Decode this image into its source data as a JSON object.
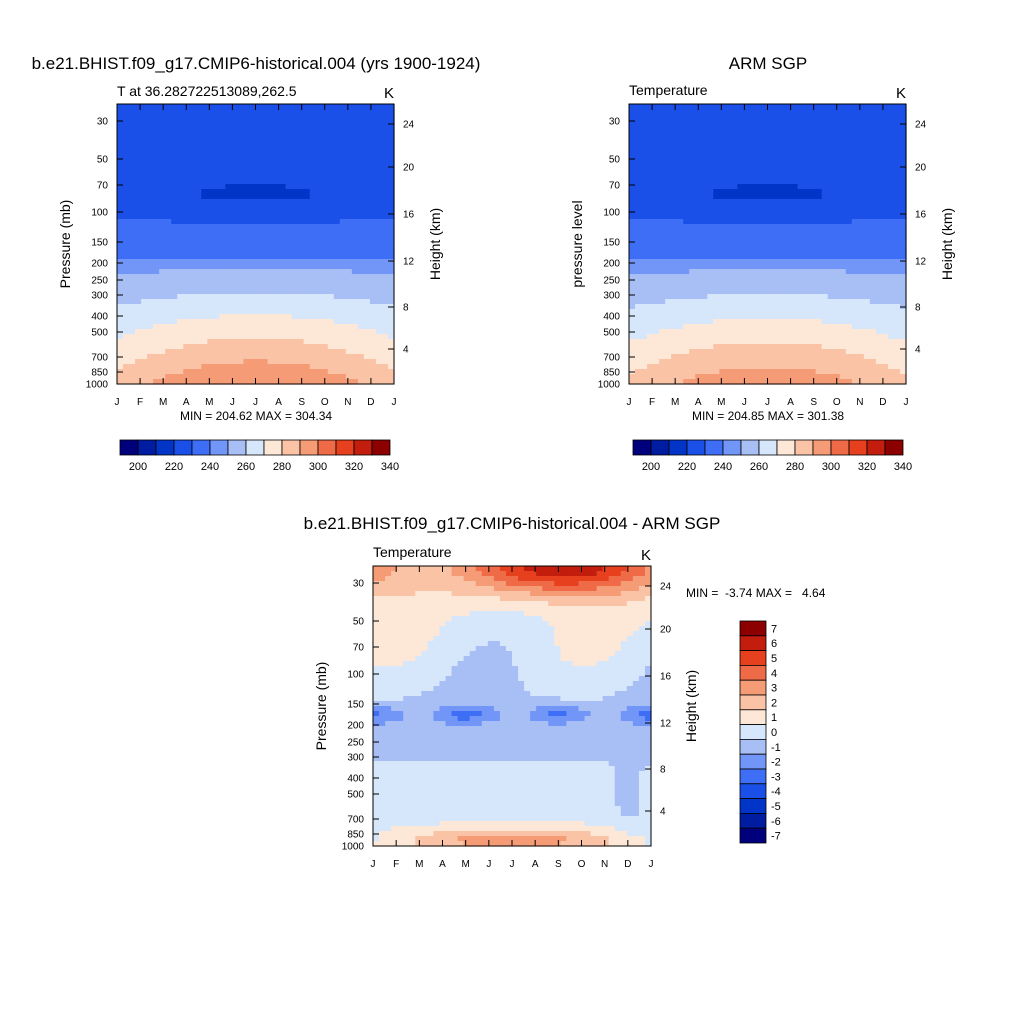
{
  "chart_data": [
    {
      "type": "heatmap",
      "title": "b.e21.BHIST.f09_g17.CMIP6-historical.004 (yrs 1900-1924)",
      "subtitle_left": "T at 36.282722513089,262.5",
      "subtitle_right": "K",
      "ylabel": "Pressure (mb)",
      "y2label": "Height (km)",
      "x_ticks": [
        "J",
        "F",
        "M",
        "A",
        "M",
        "J",
        "J",
        "A",
        "S",
        "O",
        "N",
        "D",
        "J"
      ],
      "y_ticks": [
        "30",
        "50",
        "70",
        "100",
        "150",
        "200",
        "250",
        "300",
        "400",
        "500",
        "700",
        "850",
        "1000"
      ],
      "y2_ticks": [
        "24",
        "20",
        "16",
        "12",
        "8",
        "4"
      ],
      "stats": "MIN = 204.62 MAX = 304.34",
      "colorbar_labels": [
        "200",
        "220",
        "240",
        "260",
        "280",
        "300",
        "320",
        "340"
      ],
      "min": 204.62,
      "max": 304.34
    },
    {
      "type": "heatmap",
      "title": "ARM SGP",
      "subtitle_left": "Temperature",
      "subtitle_right": "K",
      "ylabel": "pressure level",
      "y2label": "Height (km)",
      "x_ticks": [
        "J",
        "F",
        "M",
        "A",
        "M",
        "J",
        "J",
        "A",
        "S",
        "O",
        "N",
        "D",
        "J"
      ],
      "y_ticks": [
        "30",
        "50",
        "70",
        "100",
        "150",
        "200",
        "250",
        "300",
        "400",
        "500",
        "700",
        "850",
        "1000"
      ],
      "y2_ticks": [
        "24",
        "20",
        "16",
        "12",
        "8",
        "4"
      ],
      "stats": "MIN = 204.85 MAX = 301.38",
      "colorbar_labels": [
        "200",
        "220",
        "240",
        "260",
        "280",
        "300",
        "320",
        "340"
      ],
      "min": 204.85,
      "max": 301.38
    },
    {
      "type": "heatmap",
      "title": "b.e21.BHIST.f09_g17.CMIP6-historical.004 - ARM SGP",
      "subtitle_left": "Temperature",
      "subtitle_right": "K",
      "ylabel": "Pressure (mb)",
      "y2label": "Height (km)",
      "x_ticks": [
        "J",
        "F",
        "M",
        "A",
        "M",
        "J",
        "J",
        "A",
        "S",
        "O",
        "N",
        "D",
        "J"
      ],
      "y_ticks": [
        "30",
        "50",
        "70",
        "100",
        "150",
        "200",
        "250",
        "300",
        "400",
        "500",
        "700",
        "850",
        "1000"
      ],
      "y2_ticks": [
        "24",
        "20",
        "16",
        "12",
        "8",
        "4"
      ],
      "stats": "MIN =  -3.74 MAX =   4.64",
      "colorbar_labels": [
        "7",
        "6",
        "5",
        "4",
        "3",
        "2",
        "1",
        "0",
        "-1",
        "-2",
        "-3",
        "-4",
        "-5",
        "-6",
        "-7"
      ],
      "min": -3.74,
      "max": 4.64
    }
  ],
  "palette": [
    "#00007d",
    "#001ca0",
    "#0035c7",
    "#1a50e8",
    "#3e6ef5",
    "#7296f7",
    "#a8bff5",
    "#d6e6fb",
    "#fde8d8",
    "#fac3a6",
    "#f59b76",
    "#ef6b47",
    "#e6401e",
    "#c21d0d",
    "#8c0000"
  ],
  "diff_palette": [
    "#00007d",
    "#001ca0",
    "#0035c7",
    "#1a50e8",
    "#3e6ef5",
    "#7296f7",
    "#a8bff5",
    "#d6e6fb",
    "#fde8d8",
    "#fac3a6",
    "#f59b76",
    "#ef6b47",
    "#e6401e",
    "#c21d0d",
    "#8c0000"
  ]
}
